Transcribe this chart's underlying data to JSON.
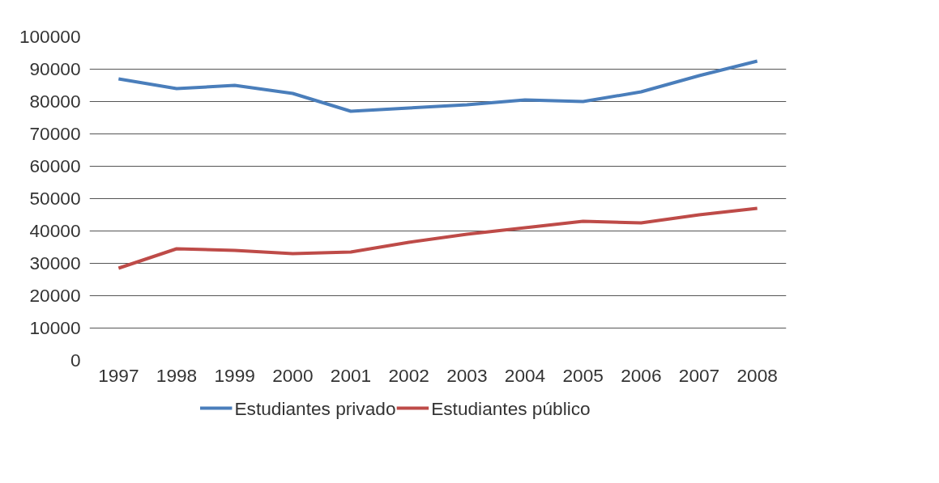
{
  "chart_data": {
    "type": "line",
    "categories": [
      "1997",
      "1998",
      "1999",
      "2000",
      "2001",
      "2002",
      "2003",
      "2004",
      "2005",
      "2006",
      "2007",
      "2008"
    ],
    "series": [
      {
        "name": "Estudiantes privado",
        "color": "#4a7ebb",
        "values": [
          87000,
          84000,
          85000,
          82500,
          77000,
          78000,
          79000,
          80500,
          80000,
          83000,
          88000,
          92500
        ]
      },
      {
        "name": "Estudiantes público",
        "color": "#be4b48",
        "values": [
          28500,
          34500,
          34000,
          33000,
          33500,
          36500,
          39000,
          41000,
          43000,
          42500,
          45000,
          47000
        ]
      }
    ],
    "ylim": [
      0,
      100000
    ],
    "yticks": [
      0,
      10000,
      20000,
      30000,
      40000,
      50000,
      60000,
      70000,
      80000,
      90000,
      100000
    ],
    "grid": "y",
    "legend": "bottom",
    "marker": "none",
    "line_style": "solid"
  }
}
